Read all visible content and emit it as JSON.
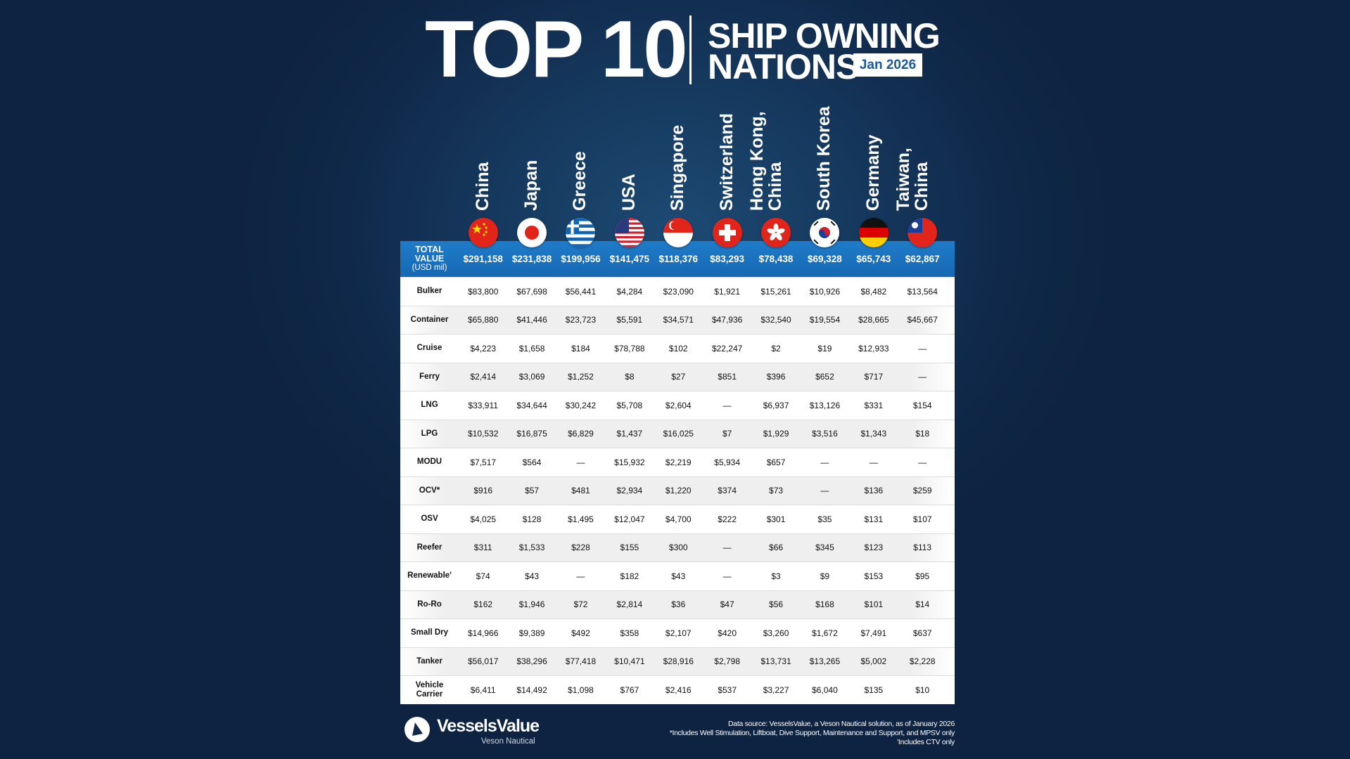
{
  "header": {
    "title_main": "TOP 10",
    "title_line1": "SHIP OWNING",
    "title_line2": "NATIONS",
    "date_badge": "Jan 2026"
  },
  "countries": [
    {
      "name": "China",
      "flag": "china-flag"
    },
    {
      "name": "Japan",
      "flag": "japan-flag"
    },
    {
      "name": "Greece",
      "flag": "greece-flag"
    },
    {
      "name": "USA",
      "flag": "usa-flag"
    },
    {
      "name": "Singapore",
      "flag": "singapore-flag"
    },
    {
      "name": "Switzerland",
      "flag": "switzerland-flag"
    },
    {
      "name": "Hong Kong,\nChina",
      "flag": "hong-kong-flag"
    },
    {
      "name": "South Korea",
      "flag": "south-korea-flag"
    },
    {
      "name": "Germany",
      "flag": "germany-flag"
    },
    {
      "name": "Taiwan,\nChina",
      "flag": "taiwan-flag"
    }
  ],
  "total": {
    "label_line1": "TOTAL",
    "label_line2": "VALUE",
    "label_unit": "(USD mil)",
    "values": [
      "$291,158",
      "$231,838",
      "$199,956",
      "$141,475",
      "$118,376",
      "$83,293",
      "$78,438",
      "$69,328",
      "$65,743",
      "$62,867"
    ]
  },
  "rows": [
    {
      "label": "Bulker",
      "values": [
        "$83,800",
        "$67,698",
        "$56,441",
        "$4,284",
        "$23,090",
        "$1,921",
        "$15,261",
        "$10,926",
        "$8,482",
        "$13,564"
      ]
    },
    {
      "label": "Container",
      "values": [
        "$65,880",
        "$41,446",
        "$23,723",
        "$5,591",
        "$34,571",
        "$47,936",
        "$32,540",
        "$19,554",
        "$28,665",
        "$45,667"
      ]
    },
    {
      "label": "Cruise",
      "values": [
        "$4,223",
        "$1,658",
        "$184",
        "$78,788",
        "$102",
        "$22,247",
        "$2",
        "$19",
        "$12,933",
        "—"
      ]
    },
    {
      "label": "Ferry",
      "values": [
        "$2,414",
        "$3,069",
        "$1,252",
        "$8",
        "$27",
        "$851",
        "$396",
        "$652",
        "$717",
        "—"
      ]
    },
    {
      "label": "LNG",
      "values": [
        "$33,911",
        "$34,644",
        "$30,242",
        "$5,708",
        "$2,604",
        "—",
        "$6,937",
        "$13,126",
        "$331",
        "$154"
      ]
    },
    {
      "label": "LPG",
      "values": [
        "$10,532",
        "$16,875",
        "$6,829",
        "$1,437",
        "$16,025",
        "$7",
        "$1,929",
        "$3,516",
        "$1,343",
        "$18"
      ]
    },
    {
      "label": "MODU",
      "values": [
        "$7,517",
        "$564",
        "—",
        "$15,932",
        "$2,219",
        "$5,934",
        "$657",
        "—",
        "—",
        "—"
      ]
    },
    {
      "label": "OCV*",
      "values": [
        "$916",
        "$57",
        "$481",
        "$2,934",
        "$1,220",
        "$374",
        "$73",
        "—",
        "$136",
        "$259"
      ]
    },
    {
      "label": "OSV",
      "values": [
        "$4,025",
        "$128",
        "$1,495",
        "$12,047",
        "$4,700",
        "$222",
        "$301",
        "$35",
        "$131",
        "$107"
      ]
    },
    {
      "label": "Reefer",
      "values": [
        "$311",
        "$1,533",
        "$228",
        "$155",
        "$300",
        "—",
        "$66",
        "$345",
        "$123",
        "$113"
      ]
    },
    {
      "label": "Renewable'",
      "values": [
        "$74",
        "$43",
        "—",
        "$182",
        "$43",
        "—",
        "$3",
        "$9",
        "$153",
        "$95"
      ]
    },
    {
      "label": "Ro-Ro",
      "values": [
        "$162",
        "$1,946",
        "$72",
        "$2,814",
        "$36",
        "$47",
        "$56",
        "$168",
        "$101",
        "$14"
      ]
    },
    {
      "label": "Small Dry",
      "values": [
        "$14,966",
        "$9,389",
        "$492",
        "$358",
        "$2,107",
        "$420",
        "$3,260",
        "$1,672",
        "$7,491",
        "$637"
      ]
    },
    {
      "label": "Tanker",
      "values": [
        "$56,017",
        "$38,296",
        "$77,418",
        "$10,471",
        "$28,916",
        "$2,798",
        "$13,731",
        "$13,265",
        "$5,002",
        "$2,228"
      ]
    },
    {
      "label": "Vehicle\nCarrier",
      "values": [
        "$6,411",
        "$14,492",
        "$1,098",
        "$767",
        "$2,416",
        "$537",
        "$3,227",
        "$6,040",
        "$135",
        "$10"
      ]
    }
  ],
  "footer": {
    "brand": "VesselsValue",
    "brand_sub": "Veson Nautical",
    "note1": "Data source: VesselsValue, a Veson Nautical solution, as of January 2026",
    "note2": "*Includes Well Stimulation, Liftboat, Dive Support, Maintenance and Support, and MPSV only",
    "note3": "'Includes CTV only"
  },
  "colors": {
    "header_blue": "#1a72bf",
    "background": "#10294a"
  }
}
